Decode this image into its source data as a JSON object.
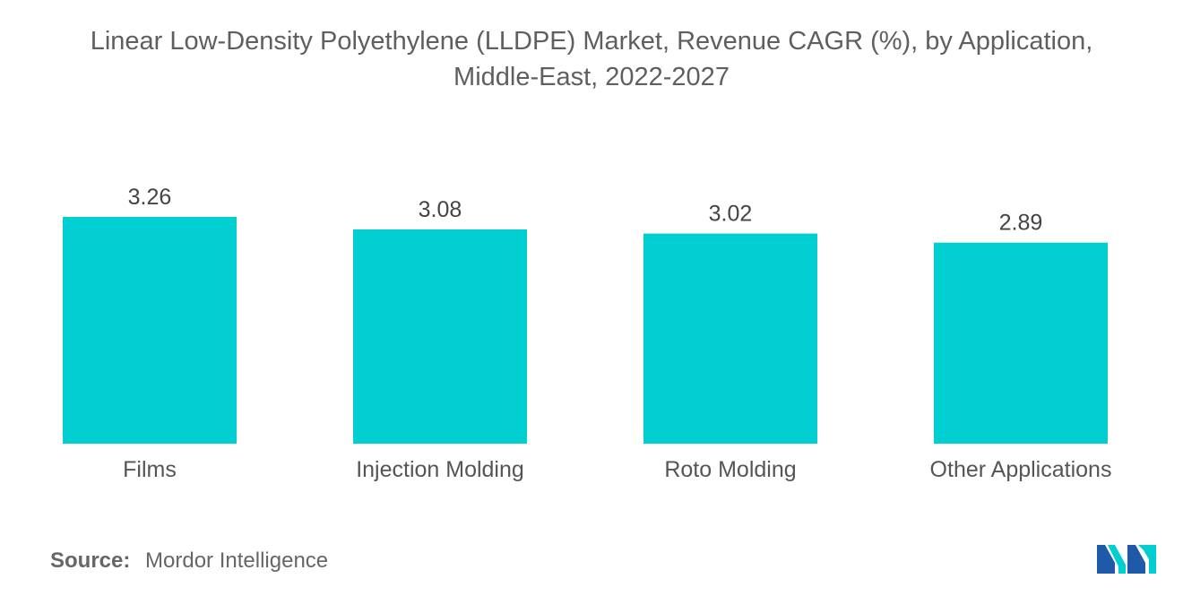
{
  "chart_data": {
    "type": "bar",
    "title_line1": "Linear Low-Density Polyethylene (LLDPE) Market, Revenue CAGR (%), by Application,",
    "title_line2": "Middle-East, 2022-2027",
    "categories": [
      "Films",
      "Injection Molding",
      "Roto Molding",
      "Other Applications"
    ],
    "values": [
      3.26,
      3.08,
      3.02,
      2.89
    ],
    "value_labels": [
      "3.26",
      "3.08",
      "3.02",
      "2.89"
    ],
    "xlabel": "",
    "ylabel": "",
    "ylim": [
      0,
      3.26
    ],
    "grid": false,
    "legend": "none",
    "bar_color": "#00CED1"
  },
  "source": {
    "label": "Source:",
    "text": "Mordor Intelligence"
  },
  "logo": {
    "icon": "mordor-intelligence-logo-icon",
    "colors": [
      "#1E5AA8",
      "#00CED1"
    ]
  }
}
